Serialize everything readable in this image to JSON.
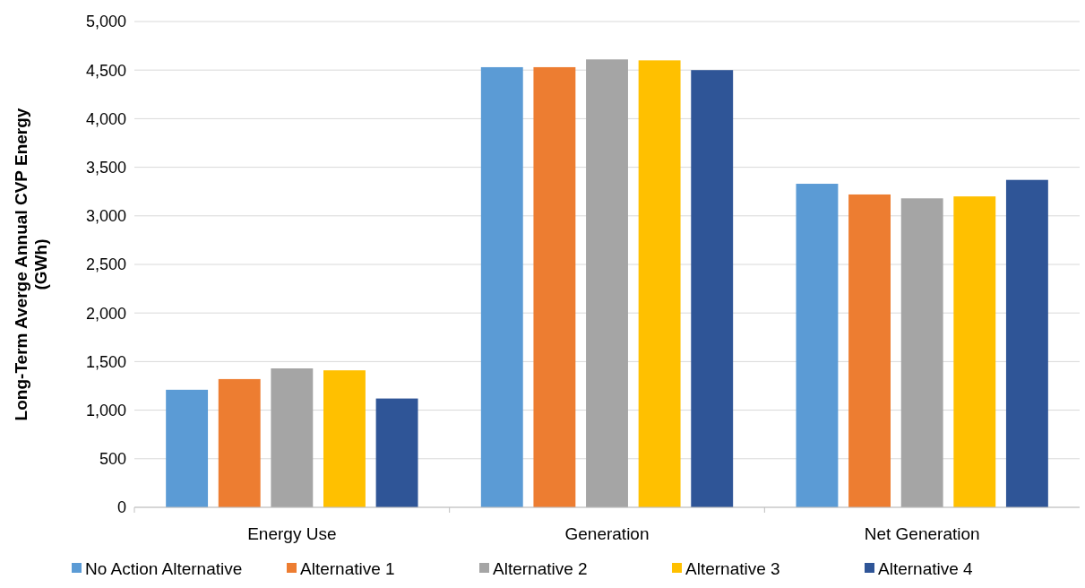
{
  "chart_data": {
    "type": "bar",
    "ylabel": "Long-Term Averge Annual CVP Energy\n(GWh)",
    "categories": [
      "Energy Use",
      "Generation",
      "Net Generation"
    ],
    "series": [
      {
        "name": "No Action Alternative",
        "color": "#5b9bd5",
        "values": [
          1210,
          4530,
          3330
        ]
      },
      {
        "name": "Alternative 1",
        "color": "#ed7d31",
        "values": [
          1320,
          4530,
          3220
        ]
      },
      {
        "name": "Alternative 2",
        "color": "#a5a5a5",
        "values": [
          1430,
          4610,
          3180
        ]
      },
      {
        "name": "Alternative 3",
        "color": "#ffc000",
        "values": [
          1410,
          4600,
          3200
        ]
      },
      {
        "name": "Alternative 4",
        "color": "#2f5597",
        "values": [
          1120,
          4500,
          3370
        ]
      }
    ],
    "ylim": [
      0,
      5000
    ],
    "yticks": [
      {
        "value": 0,
        "label": "0"
      },
      {
        "value": 500,
        "label": "500"
      },
      {
        "value": 1000,
        "label": "1,000"
      },
      {
        "value": 1500,
        "label": "1,500"
      },
      {
        "value": 2000,
        "label": "2,000"
      },
      {
        "value": 2500,
        "label": "2,500"
      },
      {
        "value": 3000,
        "label": "3,000"
      },
      {
        "value": 3500,
        "label": "3,500"
      },
      {
        "value": 4000,
        "label": "4,000"
      },
      {
        "value": 4500,
        "label": "4,500"
      },
      {
        "value": 5000,
        "label": "5,000"
      }
    ],
    "grid": "y",
    "legend": "bottom"
  }
}
